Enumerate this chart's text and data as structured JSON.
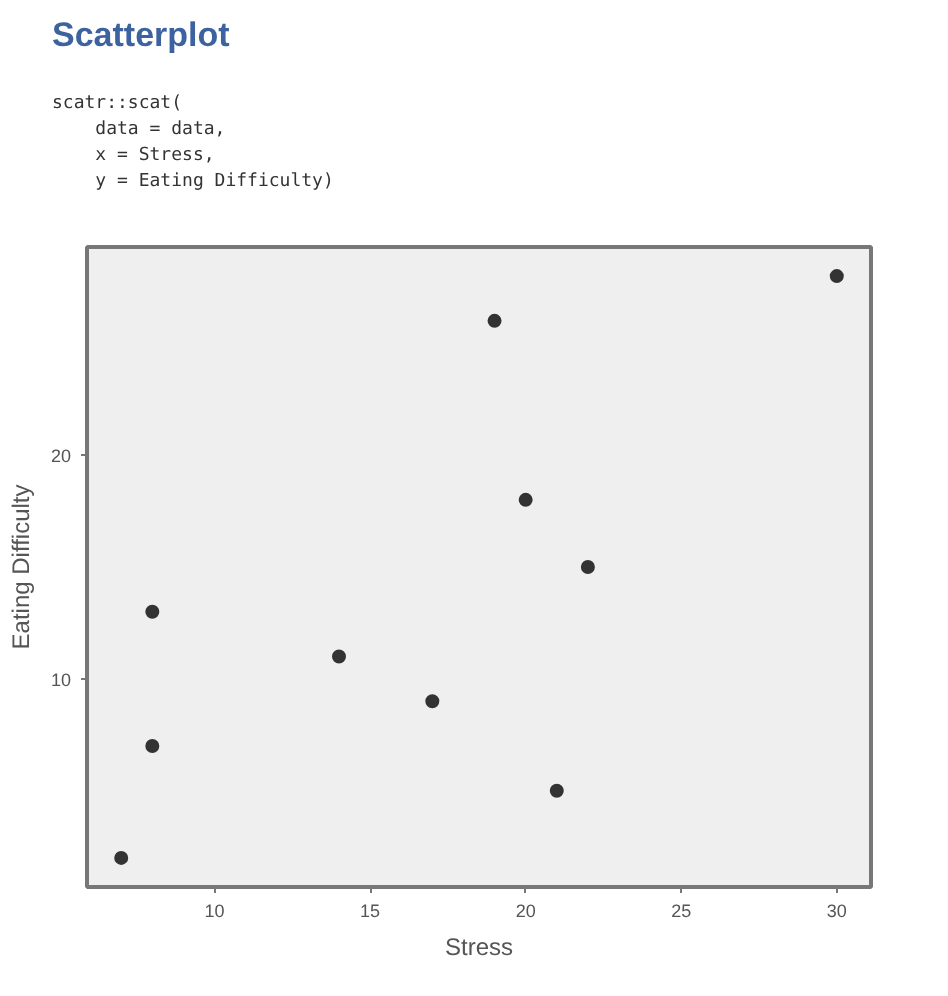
{
  "chart_data": {
    "type": "scatter",
    "title": "Scatterplot",
    "annotations": [
      "scatr::scat(\n    data = data,\n    x = Stress,\n    y = Eating Difficulty)"
    ],
    "xlabel": "Stress",
    "ylabel": "Eating Difficulty",
    "x": [
      7,
      8,
      8,
      14,
      17,
      19,
      20,
      21,
      22,
      30
    ],
    "series": [
      {
        "color": "#333333",
        "values": [
          2,
          7,
          13,
          11,
          9,
          26,
          18,
          5,
          15,
          28
        ]
      }
    ],
    "xlim": [
      5.9,
      31.1
    ],
    "ylim": [
      0.7,
      29.3
    ],
    "xticks": [
      10,
      15,
      20,
      25,
      30
    ],
    "yticks": [
      10,
      20
    ],
    "marker": "circle",
    "grid": false
  }
}
